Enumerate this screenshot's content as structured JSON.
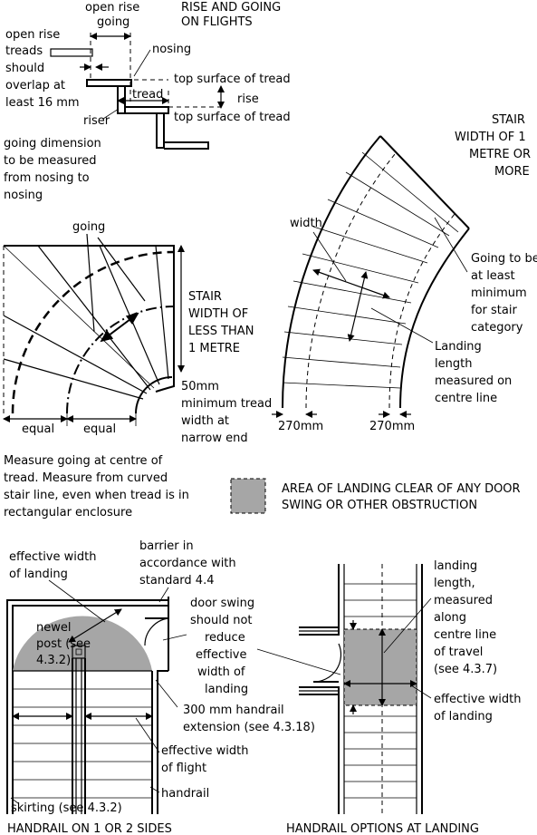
{
  "panel_rise_going": {
    "title_lines": [
      "RISE AND GOING",
      "ON FLIGHTS"
    ],
    "open_rise_lines": [
      "open rise",
      "going"
    ],
    "nosing": "nosing",
    "top_surface_1": "top surface of tread",
    "tread": "tread",
    "rise": "rise",
    "top_surface_2": "top surface of tread",
    "riser": "riser",
    "overlap_lines": [
      "open rise",
      "treads",
      "should",
      "overlap at",
      "least 16 mm"
    ],
    "going_note_lines": [
      "going dimension",
      "to be measured",
      "from nosing to",
      "nosing"
    ]
  },
  "panel_narrow_stair": {
    "going": "going",
    "width_title_lines": [
      "STAIR",
      "WIDTH OF",
      "LESS THAN",
      "1 METRE"
    ],
    "min_tread_lines": [
      "50mm",
      "minimum tread",
      "width at",
      "narrow end"
    ],
    "equal_left": "equal",
    "equal_right": "equal",
    "measure_note_lines": [
      "Measure going at centre of",
      "tread. Measure from curved",
      "stair line, even when tread is in",
      "rectangular enclosure"
    ]
  },
  "panel_wide_stair": {
    "width_title_lines": [
      "STAIR",
      "WIDTH OF 1",
      "METRE OR",
      "MORE"
    ],
    "width": "width",
    "going_note_lines": [
      "Going to be",
      "at least",
      "minimum",
      "for stair",
      "category"
    ],
    "landing_note_lines": [
      "Landing",
      "length",
      "measured on",
      "centre line"
    ],
    "dim_left": "270mm",
    "dim_right": "270mm"
  },
  "legend": {
    "swatch_color": "#a6a6a6",
    "text_lines": [
      "AREA OF LANDING CLEAR OF ANY DOOR",
      "SWING OR OTHER OBSTRUCTION"
    ]
  },
  "panel_handrail_sides": {
    "effective_landing_lines": [
      "effective width",
      "of landing"
    ],
    "barrier_lines": [
      "barrier in",
      "accordance with",
      "standard 4.4"
    ],
    "newel_lines": [
      "newel",
      "post (see",
      "4.3.2)"
    ],
    "door_swing_lines": [
      "door swing",
      "should not",
      "reduce",
      "effective",
      "width of",
      "landing"
    ],
    "extension_lines": [
      "300 mm handrail",
      "extension (see 4.3.18)"
    ],
    "flight_width_lines": [
      "effective width",
      "of flight"
    ],
    "handrail": "handrail",
    "skirting": "skirting (see 4.3.2)",
    "caption": "HANDRAIL ON 1 OR 2 SIDES"
  },
  "panel_handrail_landing": {
    "landing_length_lines": [
      "landing",
      "length,",
      "measured",
      "along",
      "centre line",
      "of travel",
      "(see 4.3.7)"
    ],
    "effective_landing_lines": [
      "effective width",
      "of landing"
    ],
    "caption": "HANDRAIL OPTIONS AT LANDING"
  }
}
